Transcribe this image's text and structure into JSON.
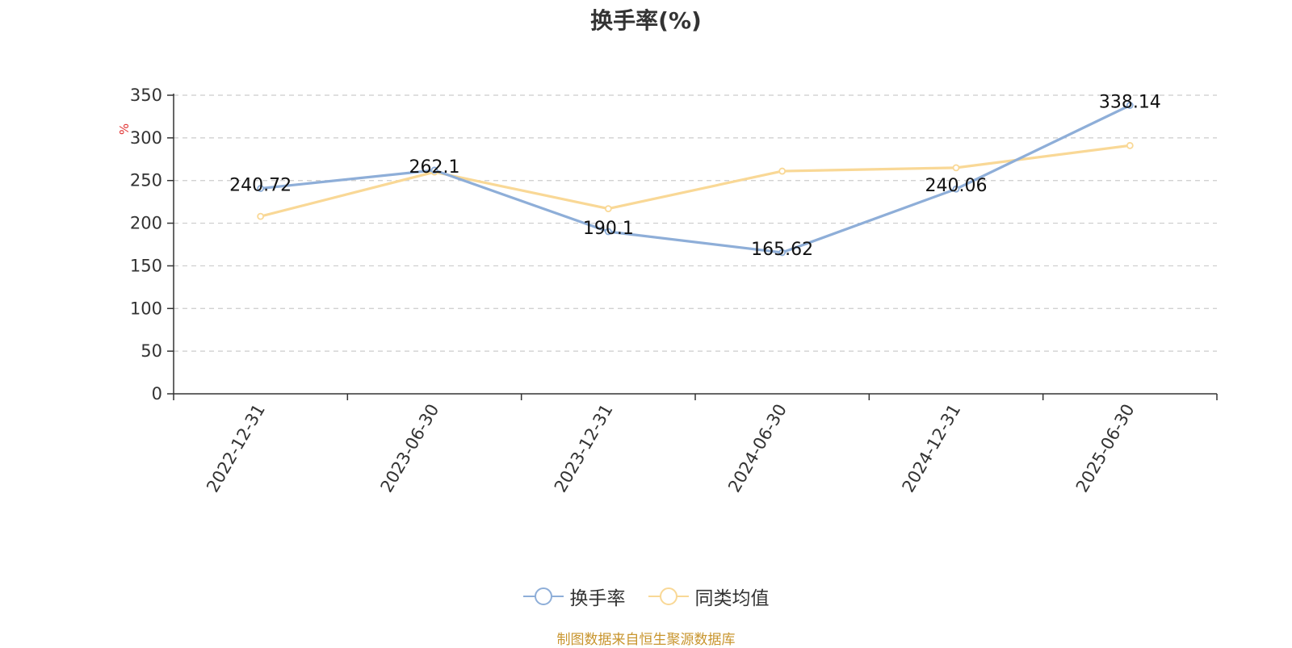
{
  "title": "换手率(%)",
  "source": "制图数据来自恒生聚源数据库",
  "colors": {
    "series1": "#8eaed8",
    "series2": "#f9d896",
    "unit": "#e03131",
    "source": "#c8952e"
  },
  "chart_data": {
    "type": "line",
    "title": "换手率(%)",
    "ylabel": "%",
    "xlabel": "",
    "ylim": [
      0,
      350
    ],
    "yticks": [
      0,
      50,
      100,
      150,
      200,
      250,
      300,
      350
    ],
    "grid": true,
    "legend_position": "bottom-center",
    "categories": [
      "2022-12-31",
      "2023-06-30",
      "2023-12-31",
      "2024-06-30",
      "2024-12-31",
      "2025-06-30"
    ],
    "series": [
      {
        "name": "换手率",
        "values": [
          240.72,
          262.1,
          190.1,
          165.62,
          240.06,
          338.14
        ],
        "labels": [
          "240.72",
          "262.1",
          "190.1",
          "165.62",
          "240.06",
          "338.14"
        ]
      },
      {
        "name": "同类均值",
        "values": [
          208,
          260,
          217,
          261,
          265,
          291
        ]
      }
    ]
  }
}
